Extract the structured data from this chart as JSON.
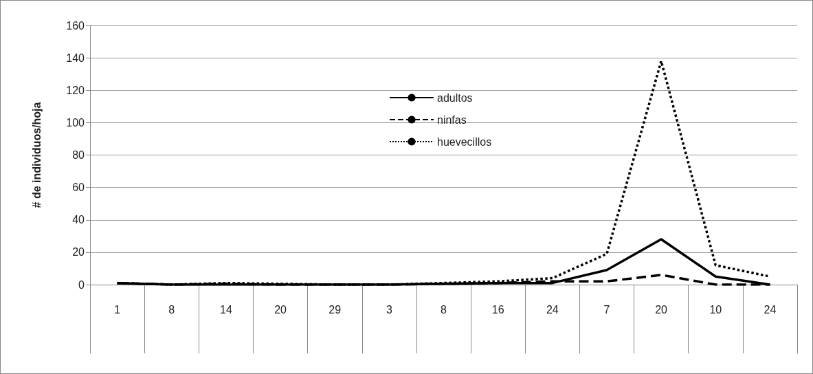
{
  "chart_data": {
    "type": "line",
    "ylabel": "# de individuos/hoja",
    "categories": [
      "1",
      "8",
      "14",
      "20",
      "29",
      "3",
      "8",
      "16",
      "24",
      "7",
      "20",
      "10",
      "24"
    ],
    "series": [
      {
        "name": "adultos",
        "color": "#000000",
        "line_style": "solid",
        "values": [
          1,
          0,
          0,
          0,
          0,
          0,
          0.5,
          1,
          1,
          9,
          28,
          5,
          0
        ]
      },
      {
        "name": "ninfas",
        "color": "#000000",
        "line_style": "dashed",
        "values": [
          1,
          0,
          0.5,
          0,
          0,
          0,
          0.5,
          1,
          2,
          2,
          6,
          0,
          0
        ]
      },
      {
        "name": "huevecillos",
        "color": "#000000",
        "line_style": "dotted",
        "values": [
          1,
          0,
          1,
          0.5,
          0,
          0,
          1,
          2,
          4,
          19,
          138,
          12,
          5
        ]
      }
    ],
    "ylim": [
      0,
      160
    ],
    "yticks": [
      0,
      20,
      40,
      60,
      80,
      100,
      120,
      140,
      160
    ],
    "grid": "y",
    "legend": "top",
    "marker": "none"
  }
}
